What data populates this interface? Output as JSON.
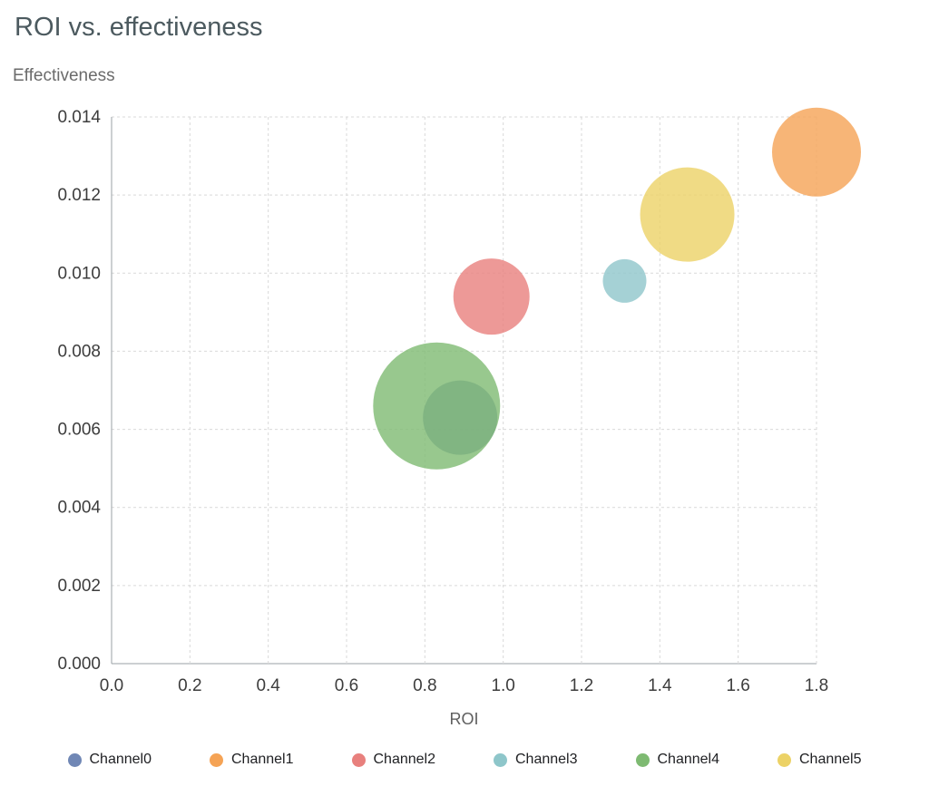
{
  "chart_data": {
    "type": "scatter",
    "subtype": "bubble",
    "title": "ROI vs. effectiveness",
    "xlabel": "ROI",
    "ylabel": "Effectiveness",
    "xlim": [
      0,
      1.8
    ],
    "ylim": [
      0,
      0.014
    ],
    "xticks": [
      "0.0",
      "0.2",
      "0.4",
      "0.6",
      "0.8",
      "1.0",
      "1.2",
      "1.4",
      "1.6",
      "1.8"
    ],
    "yticks": [
      "0.000",
      "0.002",
      "0.004",
      "0.006",
      "0.008",
      "0.010",
      "0.012",
      "0.014"
    ],
    "grid": "dashed",
    "legend_position": "bottom",
    "bubble_opacity": 0.8,
    "series": [
      {
        "name": "Channel0",
        "color": "#7087b5",
        "x": 0.89,
        "y": 0.0063,
        "radius": 41
      },
      {
        "name": "Channel1",
        "color": "#f5a355",
        "x": 1.8,
        "y": 0.0131,
        "radius": 49
      },
      {
        "name": "Channel2",
        "color": "#e8807d",
        "x": 0.97,
        "y": 0.0094,
        "radius": 42
      },
      {
        "name": "Channel3",
        "color": "#8ec6ca",
        "x": 1.31,
        "y": 0.0098,
        "radius": 24
      },
      {
        "name": "Channel4",
        "color": "#7eba72",
        "x": 0.83,
        "y": 0.0066,
        "radius": 70
      },
      {
        "name": "Channel5",
        "color": "#ecd266",
        "x": 1.47,
        "y": 0.0115,
        "radius": 52
      }
    ],
    "draw_order": [
      0,
      1,
      2,
      3,
      4,
      5
    ]
  }
}
